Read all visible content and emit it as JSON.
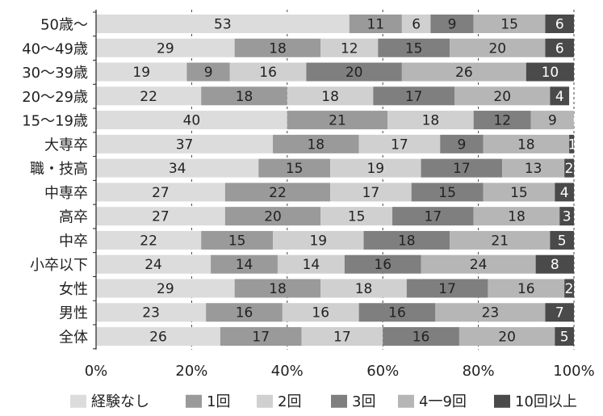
{
  "chart_data": {
    "type": "bar",
    "orientation": "horizontal",
    "stacked": true,
    "normalized_100": true,
    "categories": [
      "50歳～",
      "40～49歳",
      "30～39歳",
      "20～29歳",
      "15～19歳",
      "大専卒",
      "職・技高",
      "中専卒",
      "高卒",
      "中卒",
      "小卒以下",
      "女性",
      "男性",
      "全体"
    ],
    "series": [
      {
        "name": "経験なし",
        "color": "#dcdcdc",
        "values": [
          53,
          29,
          19,
          22,
          40,
          37,
          34,
          27,
          27,
          22,
          24,
          29,
          23,
          26
        ]
      },
      {
        "name": "1回",
        "color": "#9a9a9a",
        "values": [
          11,
          18,
          9,
          18,
          21,
          18,
          15,
          22,
          20,
          15,
          14,
          18,
          16,
          17
        ]
      },
      {
        "name": "2回",
        "color": "#d0d0d0",
        "values": [
          6,
          12,
          16,
          18,
          18,
          17,
          19,
          17,
          15,
          19,
          14,
          18,
          16,
          17
        ]
      },
      {
        "name": "3回",
        "color": "#7f7f7f",
        "values": [
          9,
          15,
          20,
          17,
          12,
          9,
          17,
          15,
          17,
          18,
          16,
          17,
          16,
          16
        ]
      },
      {
        "name": "4一9回",
        "color": "#b6b6b6",
        "values": [
          15,
          20,
          26,
          20,
          9,
          18,
          13,
          15,
          18,
          21,
          24,
          16,
          23,
          20
        ]
      },
      {
        "name": "10回以上",
        "color": "#4a4a4a",
        "values": [
          6,
          6,
          10,
          4,
          0,
          1,
          2,
          4,
          3,
          5,
          8,
          2,
          7,
          5
        ]
      }
    ],
    "xaxis": {
      "ticks": [
        0,
        20,
        40,
        60,
        80,
        100
      ],
      "tick_labels": [
        "0%",
        "20%",
        "40%",
        "60%",
        "80%",
        "100%"
      ],
      "range": [
        0,
        100
      ]
    },
    "grid": true,
    "legend_position": "bottom"
  }
}
